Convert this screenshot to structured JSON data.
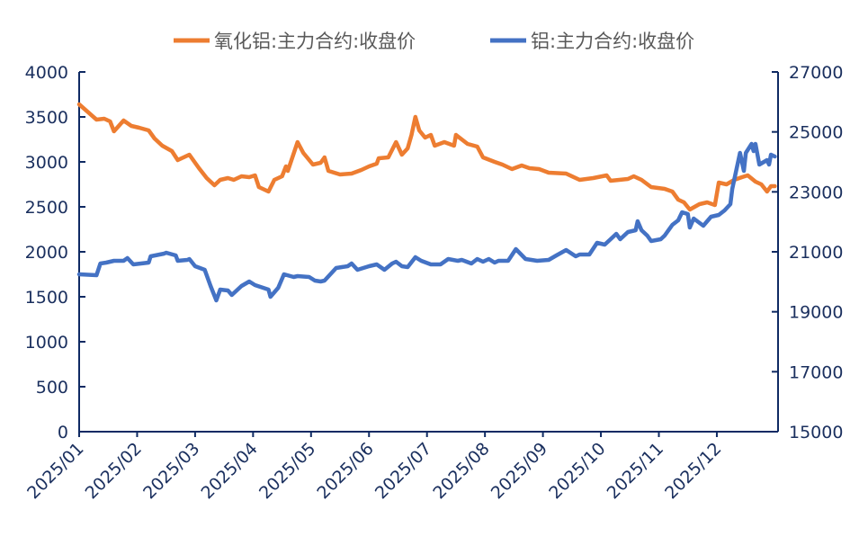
{
  "chart_data": {
    "type": "line",
    "title": "",
    "legend_position": "top",
    "grid": false,
    "x_ticks": [
      "2025/01",
      "2025/02",
      "2025/03",
      "2025/04",
      "2025/05",
      "2025/06",
      "2025/07",
      "2025/08",
      "2025/09",
      "2025/10",
      "2025/11",
      "2025/12"
    ],
    "y_left": {
      "range": [
        0,
        4000
      ],
      "ticks": [
        "0",
        "500",
        "1000",
        "1500",
        "2000",
        "2500",
        "3000",
        "3500",
        "4000"
      ]
    },
    "y_right": {
      "range": [
        15000,
        27000
      ],
      "ticks": [
        "15000",
        "17000",
        "19000",
        "21000",
        "23000",
        "25000",
        "27000"
      ]
    },
    "series": [
      {
        "name": "氧化铝:主力合约:收盘价",
        "axis": "left",
        "color": "#ed7d31",
        "points": [
          [
            "2025-01-01",
            3640
          ],
          [
            "2025-01-10",
            3470
          ],
          [
            "2025-01-14",
            3480
          ],
          [
            "2025-01-17",
            3450
          ],
          [
            "2025-01-19",
            3340
          ],
          [
            "2025-01-24",
            3460
          ],
          [
            "2025-01-28",
            3400
          ],
          [
            "2025-02-02",
            3380
          ],
          [
            "2025-02-07",
            3350
          ],
          [
            "2025-02-10",
            3260
          ],
          [
            "2025-02-14",
            3180
          ],
          [
            "2025-02-19",
            3120
          ],
          [
            "2025-02-22",
            3020
          ],
          [
            "2025-02-28",
            3080
          ],
          [
            "2025-03-03",
            2930
          ],
          [
            "2025-03-07",
            2820
          ],
          [
            "2025-03-11",
            2740
          ],
          [
            "2025-03-14",
            2800
          ],
          [
            "2025-03-18",
            2820
          ],
          [
            "2025-03-21",
            2800
          ],
          [
            "2025-03-25",
            2840
          ],
          [
            "2025-03-29",
            2830
          ],
          [
            "2025-04-02",
            2850
          ],
          [
            "2025-04-04",
            2720
          ],
          [
            "2025-04-09",
            2670
          ],
          [
            "2025-04-12",
            2800
          ],
          [
            "2025-04-16",
            2840
          ],
          [
            "2025-04-18",
            2950
          ],
          [
            "2025-04-19",
            2900
          ],
          [
            "2025-04-24",
            3220
          ],
          [
            "2025-04-27",
            3100
          ],
          [
            "2025-05-02",
            2970
          ],
          [
            "2025-05-06",
            2990
          ],
          [
            "2025-05-08",
            3050
          ],
          [
            "2025-05-10",
            2900
          ],
          [
            "2025-05-16",
            2860
          ],
          [
            "2025-05-22",
            2870
          ],
          [
            "2025-05-27",
            2910
          ],
          [
            "2025-05-31",
            2950
          ],
          [
            "2025-06-05",
            2980
          ],
          [
            "2025-06-06",
            3040
          ],
          [
            "2025-06-11",
            3050
          ],
          [
            "2025-06-15",
            3220
          ],
          [
            "2025-06-18",
            3080
          ],
          [
            "2025-06-21",
            3150
          ],
          [
            "2025-06-23",
            3300
          ],
          [
            "2025-06-25",
            3500
          ],
          [
            "2025-06-27",
            3350
          ],
          [
            "2025-06-30",
            3270
          ],
          [
            "2025-07-03",
            3300
          ],
          [
            "2025-07-05",
            3180
          ],
          [
            "2025-07-10",
            3220
          ],
          [
            "2025-07-15",
            3180
          ],
          [
            "2025-07-16",
            3300
          ],
          [
            "2025-07-22",
            3200
          ],
          [
            "2025-07-27",
            3170
          ],
          [
            "2025-07-30",
            3050
          ],
          [
            "2025-08-06",
            3000
          ],
          [
            "2025-08-10",
            2970
          ],
          [
            "2025-08-15",
            2920
          ],
          [
            "2025-08-20",
            2960
          ],
          [
            "2025-08-24",
            2930
          ],
          [
            "2025-08-29",
            2920
          ],
          [
            "2025-09-04",
            2880
          ],
          [
            "2025-09-13",
            2870
          ],
          [
            "2025-09-20",
            2800
          ],
          [
            "2025-09-27",
            2820
          ],
          [
            "2025-10-04",
            2850
          ],
          [
            "2025-10-06",
            2790
          ],
          [
            "2025-10-15",
            2810
          ],
          [
            "2025-10-18",
            2840
          ],
          [
            "2025-10-22",
            2800
          ],
          [
            "2025-10-27",
            2720
          ],
          [
            "2025-11-04",
            2700
          ],
          [
            "2025-11-08",
            2670
          ],
          [
            "2025-11-11",
            2580
          ],
          [
            "2025-11-14",
            2550
          ],
          [
            "2025-11-17",
            2470
          ],
          [
            "2025-11-22",
            2530
          ],
          [
            "2025-11-26",
            2550
          ],
          [
            "2025-11-30",
            2520
          ],
          [
            "2025-12-02",
            2770
          ],
          [
            "2025-12-06",
            2750
          ],
          [
            "2025-12-10",
            2800
          ],
          [
            "2025-12-14",
            2830
          ],
          [
            "2025-12-17",
            2850
          ],
          [
            "2025-12-21",
            2780
          ],
          [
            "2025-12-24",
            2750
          ],
          [
            "2025-12-27",
            2670
          ],
          [
            "2025-12-29",
            2730
          ],
          [
            "2025-12-31",
            2730
          ]
        ]
      },
      {
        "name": "铝:主力合约:收盘价",
        "axis": "right",
        "color": "#4472c4",
        "points": [
          [
            "2025-01-01",
            20250
          ],
          [
            "2025-01-10",
            20220
          ],
          [
            "2025-01-12",
            20610
          ],
          [
            "2025-01-15",
            20640
          ],
          [
            "2025-01-19",
            20700
          ],
          [
            "2025-01-24",
            20700
          ],
          [
            "2025-01-26",
            20790
          ],
          [
            "2025-01-29",
            20580
          ],
          [
            "2025-02-07",
            20640
          ],
          [
            "2025-02-08",
            20850
          ],
          [
            "2025-02-15",
            20940
          ],
          [
            "2025-02-16",
            20970
          ],
          [
            "2025-02-21",
            20880
          ],
          [
            "2025-02-22",
            20700
          ],
          [
            "2025-02-27",
            20730
          ],
          [
            "2025-02-28",
            20760
          ],
          [
            "2025-03-01",
            20520
          ],
          [
            "2025-03-06",
            20400
          ],
          [
            "2025-03-09",
            19860
          ],
          [
            "2025-03-12",
            19380
          ],
          [
            "2025-03-14",
            19740
          ],
          [
            "2025-03-18",
            19710
          ],
          [
            "2025-03-20",
            19560
          ],
          [
            "2025-03-25",
            19860
          ],
          [
            "2025-03-29",
            20010
          ],
          [
            "2025-04-02",
            19890
          ],
          [
            "2025-04-09",
            19740
          ],
          [
            "2025-04-10",
            19500
          ],
          [
            "2025-04-14",
            19800
          ],
          [
            "2025-04-17",
            20250
          ],
          [
            "2025-04-22",
            20160
          ],
          [
            "2025-04-24",
            20190
          ],
          [
            "2025-04-30",
            20160
          ],
          [
            "2025-05-03",
            20040
          ],
          [
            "2025-05-06",
            20010
          ],
          [
            "2025-05-08",
            20040
          ],
          [
            "2025-05-14",
            20460
          ],
          [
            "2025-05-20",
            20520
          ],
          [
            "2025-05-22",
            20610
          ],
          [
            "2025-05-25",
            20400
          ],
          [
            "2025-05-31",
            20520
          ],
          [
            "2025-06-05",
            20580
          ],
          [
            "2025-06-09",
            20400
          ],
          [
            "2025-06-13",
            20610
          ],
          [
            "2025-06-15",
            20670
          ],
          [
            "2025-06-18",
            20520
          ],
          [
            "2025-06-21",
            20490
          ],
          [
            "2025-06-25",
            20820
          ],
          [
            "2025-06-28",
            20700
          ],
          [
            "2025-07-03",
            20580
          ],
          [
            "2025-07-08",
            20580
          ],
          [
            "2025-07-12",
            20760
          ],
          [
            "2025-07-17",
            20700
          ],
          [
            "2025-07-19",
            20730
          ],
          [
            "2025-07-24",
            20610
          ],
          [
            "2025-07-27",
            20760
          ],
          [
            "2025-07-30",
            20670
          ],
          [
            "2025-08-03",
            20760
          ],
          [
            "2025-08-06",
            20640
          ],
          [
            "2025-08-08",
            20700
          ],
          [
            "2025-08-13",
            20700
          ],
          [
            "2025-08-17",
            21090
          ],
          [
            "2025-08-22",
            20760
          ],
          [
            "2025-08-28",
            20700
          ],
          [
            "2025-09-04",
            20730
          ],
          [
            "2025-09-08",
            20880
          ],
          [
            "2025-09-13",
            21060
          ],
          [
            "2025-09-18",
            20850
          ],
          [
            "2025-09-20",
            20910
          ],
          [
            "2025-09-25",
            20910
          ],
          [
            "2025-09-29",
            21300
          ],
          [
            "2025-10-03",
            21240
          ],
          [
            "2025-10-06",
            21420
          ],
          [
            "2025-10-09",
            21600
          ],
          [
            "2025-10-11",
            21420
          ],
          [
            "2025-10-13",
            21540
          ],
          [
            "2025-10-15",
            21660
          ],
          [
            "2025-10-19",
            21720
          ],
          [
            "2025-10-20",
            22020
          ],
          [
            "2025-10-22",
            21720
          ],
          [
            "2025-10-25",
            21540
          ],
          [
            "2025-10-27",
            21360
          ],
          [
            "2025-11-02",
            21420
          ],
          [
            "2025-11-04",
            21540
          ],
          [
            "2025-11-08",
            21900
          ],
          [
            "2025-11-11",
            22050
          ],
          [
            "2025-11-13",
            22320
          ],
          [
            "2025-11-16",
            22260
          ],
          [
            "2025-11-17",
            21810
          ],
          [
            "2025-11-19",
            22110
          ],
          [
            "2025-11-24",
            21870
          ],
          [
            "2025-11-28",
            22170
          ],
          [
            "2025-12-02",
            22230
          ],
          [
            "2025-12-05",
            22380
          ],
          [
            "2025-12-08",
            22590
          ],
          [
            "2025-12-09",
            23100
          ],
          [
            "2025-12-13",
            24300
          ],
          [
            "2025-12-15",
            23700
          ],
          [
            "2025-12-16",
            24300
          ],
          [
            "2025-12-19",
            24600
          ],
          [
            "2025-12-20",
            24360
          ],
          [
            "2025-12-21",
            24600
          ],
          [
            "2025-12-23",
            23910
          ],
          [
            "2025-12-27",
            24060
          ],
          [
            "2025-12-28",
            23910
          ],
          [
            "2025-12-29",
            24240
          ],
          [
            "2025-12-31",
            24180
          ]
        ]
      }
    ]
  }
}
